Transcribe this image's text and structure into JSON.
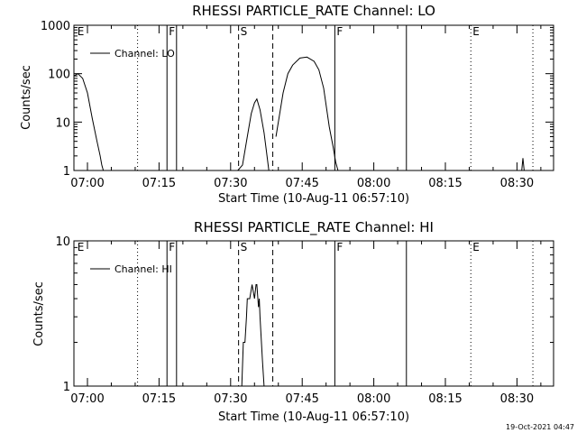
{
  "chart_data": [
    {
      "type": "line",
      "title": "RHESSI PARTICLE_RATE Channel: LO",
      "xlabel": "Start Time (10-Aug-11 06:57:10)",
      "ylabel": "Counts/sec",
      "yscale": "log",
      "xlim": [
        "06:57:10",
        "08:37:40"
      ],
      "ylim": [
        1,
        1000
      ],
      "x_ticks": [
        "07:00",
        "07:15",
        "07:30",
        "07:45",
        "08:00",
        "08:15",
        "08:30"
      ],
      "y_ticks": [
        "1",
        "10",
        "100",
        "1000"
      ],
      "legend": {
        "label": "Channel: LO",
        "position": "top-left"
      },
      "series": [
        {
          "name": "Channel: LO",
          "x": [
            "06:57:10",
            "06:58:00",
            "06:59:00",
            "07:00:00",
            "07:01:00",
            "07:02:00",
            "07:02:40",
            "07:03:00",
            "07:03:20",
            "07:31:30",
            "07:32:30",
            "07:33:30",
            "07:34:20",
            "07:35:00",
            "07:35:30",
            "07:36:10",
            "07:37:00",
            "07:37:30",
            "07:38:00",
            "07:39:30",
            "07:41:00",
            "07:42:00",
            "07:43:00",
            "07:44:30",
            "07:46:00",
            "07:47:30",
            "07:48:30",
            "07:49:30",
            "07:50:40",
            "07:51:30",
            "07:52:00",
            "07:52:30",
            "08:31:00",
            "08:31:15",
            "08:31:30"
          ],
          "y": [
            90,
            100,
            80,
            40,
            12,
            4,
            2,
            1.3,
            1,
            1,
            1.3,
            5,
            15,
            25,
            30,
            18,
            6,
            2.5,
            1,
            5,
            40,
            100,
            150,
            210,
            220,
            180,
            120,
            50,
            8,
            3,
            1.5,
            1,
            1,
            1.8,
            1
          ]
        }
      ],
      "markers": [
        {
          "label": "E",
          "time": "06:57:30",
          "style": "none"
        },
        {
          "label": "",
          "time": "07:10:30",
          "style": "dotted"
        },
        {
          "label": "F",
          "time": "07:16:40",
          "style": "solid"
        },
        {
          "label": "",
          "time": "07:18:40",
          "style": "solid"
        },
        {
          "label": "S",
          "time": "07:31:40",
          "style": "dashed"
        },
        {
          "label": "",
          "time": "07:38:50",
          "style": "dashed"
        },
        {
          "label": "F",
          "time": "07:51:50",
          "style": "solid"
        },
        {
          "label": "",
          "time": "08:06:50",
          "style": "solid"
        },
        {
          "label": "E",
          "time": "08:20:20",
          "style": "dotted"
        },
        {
          "label": "",
          "time": "08:33:20",
          "style": "dotted"
        }
      ]
    },
    {
      "type": "line",
      "title": "RHESSI PARTICLE_RATE Channel: HI",
      "xlabel": "Start Time (10-Aug-11 06:57:10)",
      "ylabel": "Counts/sec",
      "yscale": "log",
      "xlim": [
        "06:57:10",
        "08:37:40"
      ],
      "ylim": [
        1,
        10
      ],
      "x_ticks": [
        "07:00",
        "07:15",
        "07:30",
        "07:45",
        "08:00",
        "08:15",
        "08:30"
      ],
      "y_ticks": [
        "1",
        "10"
      ],
      "legend": {
        "label": "Channel: HI",
        "position": "top-left"
      },
      "series": [
        {
          "name": "Channel: HI",
          "x": [
            "07:32:20",
            "07:32:40",
            "07:33:00",
            "07:33:20",
            "07:33:30",
            "07:34:00",
            "07:34:30",
            "07:35:00",
            "07:35:20",
            "07:35:30",
            "07:35:50",
            "07:36:00",
            "07:36:10",
            "07:36:40",
            "07:37:00"
          ],
          "y": [
            1,
            2,
            2,
            3,
            4,
            4,
            5,
            4,
            5,
            5,
            3.5,
            4,
            3,
            1.5,
            1
          ]
        }
      ],
      "markers": [
        {
          "label": "E",
          "time": "06:57:30",
          "style": "none"
        },
        {
          "label": "",
          "time": "07:10:30",
          "style": "dotted"
        },
        {
          "label": "F",
          "time": "07:16:40",
          "style": "solid"
        },
        {
          "label": "",
          "time": "07:18:40",
          "style": "solid"
        },
        {
          "label": "S",
          "time": "07:31:40",
          "style": "dashed"
        },
        {
          "label": "",
          "time": "07:38:50",
          "style": "dashed"
        },
        {
          "label": "F",
          "time": "07:51:50",
          "style": "solid"
        },
        {
          "label": "",
          "time": "08:06:50",
          "style": "solid"
        },
        {
          "label": "E",
          "time": "08:20:20",
          "style": "dotted"
        },
        {
          "label": "",
          "time": "08:33:20",
          "style": "dotted"
        }
      ]
    }
  ],
  "footer": {
    "timestamp": "19-Oct-2021 04:47"
  }
}
